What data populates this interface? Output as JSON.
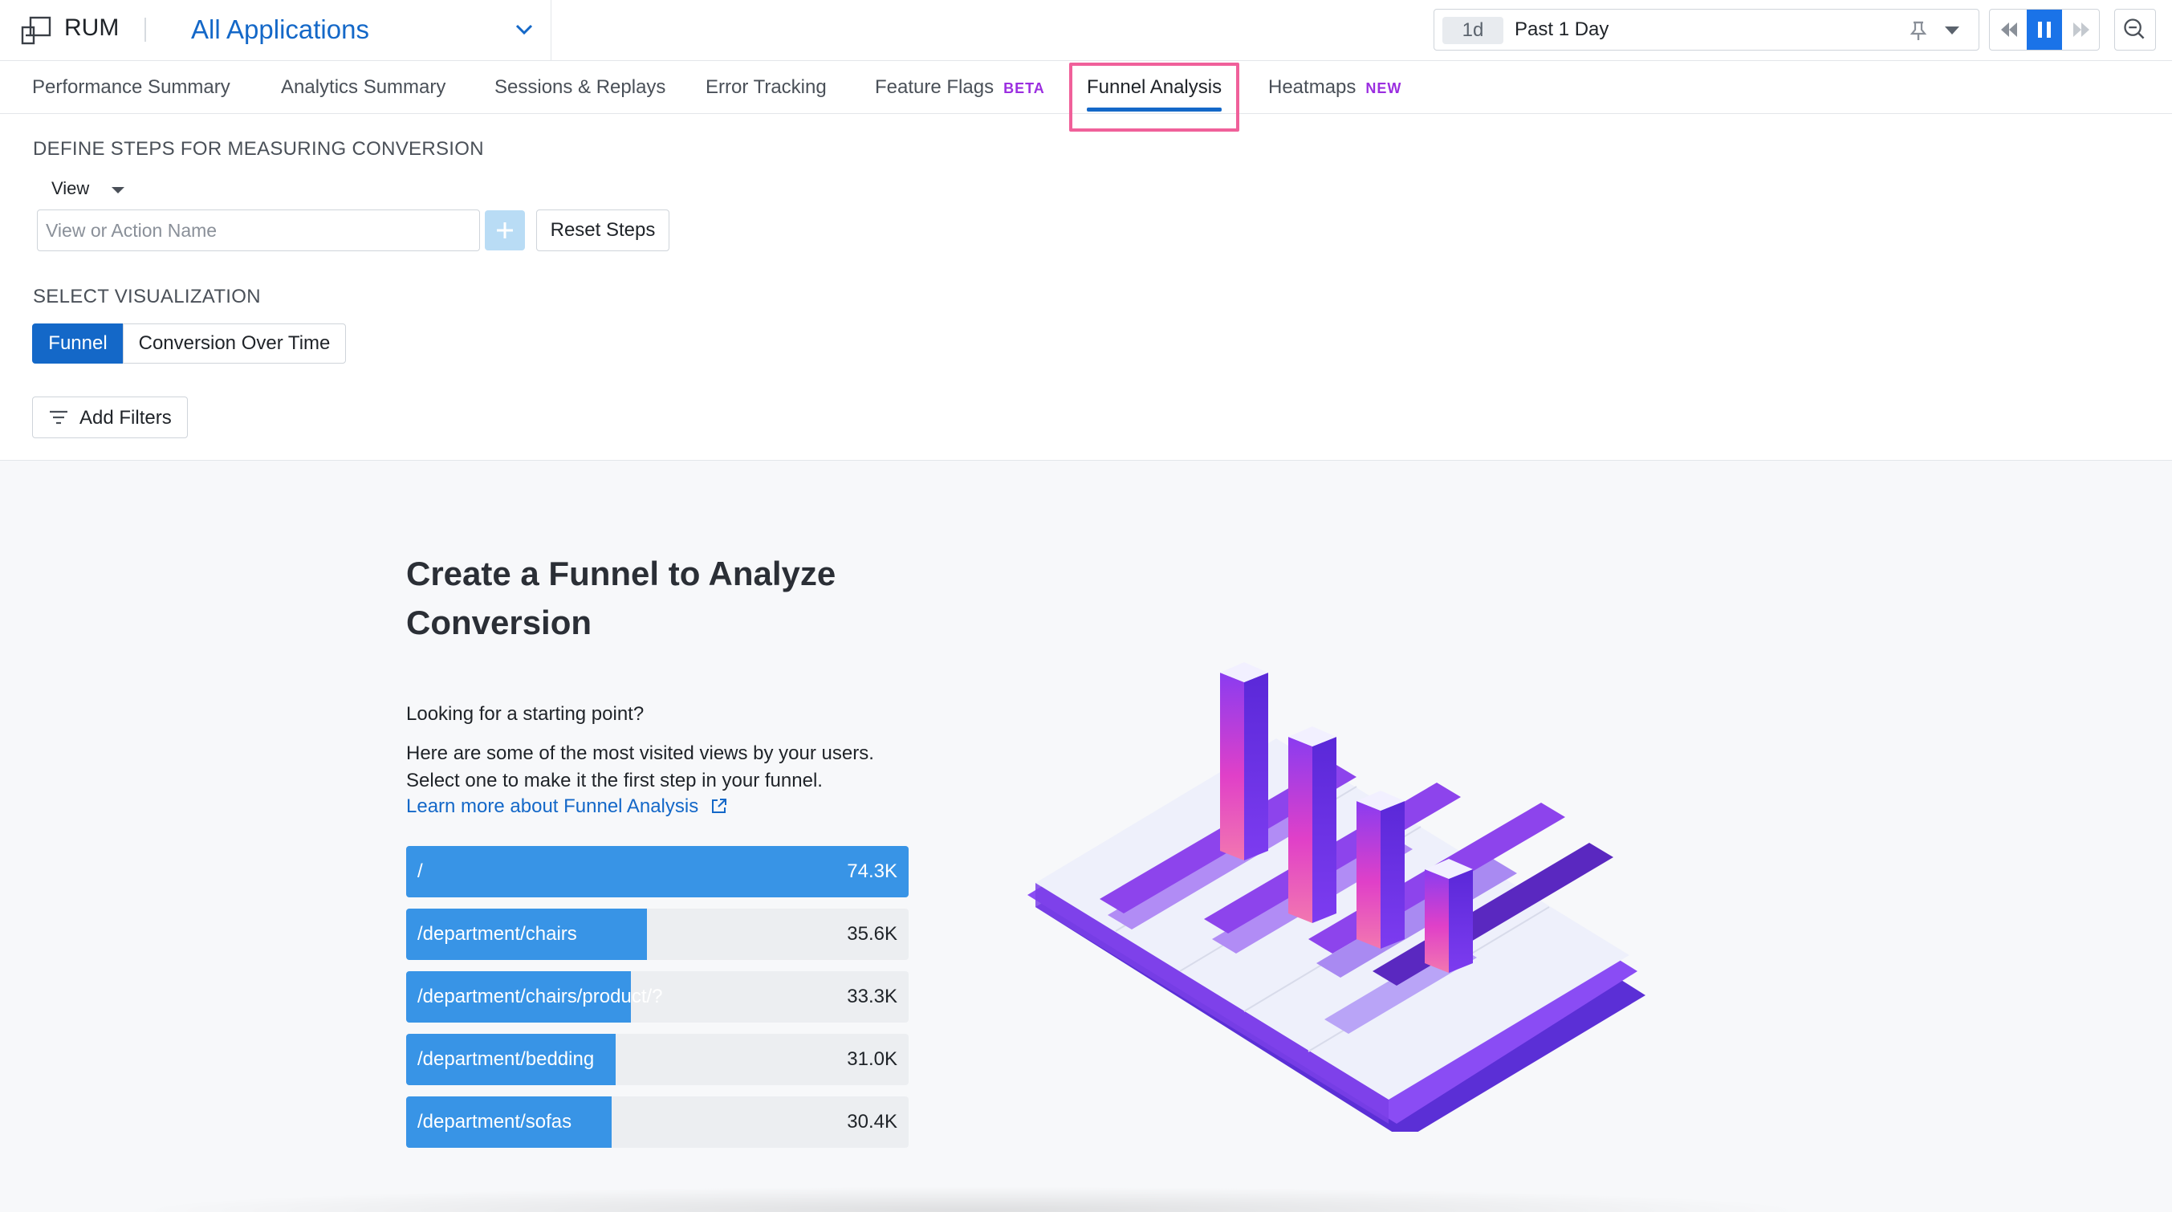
{
  "header": {
    "product": "RUM",
    "app_selector": "All Applications",
    "time_chip": "1d",
    "time_range": "Past 1 Day"
  },
  "tabs": [
    {
      "label": "Performance Summary",
      "badge": ""
    },
    {
      "label": "Analytics Summary",
      "badge": ""
    },
    {
      "label": "Sessions & Replays",
      "badge": ""
    },
    {
      "label": "Error Tracking",
      "badge": ""
    },
    {
      "label": "Feature Flags",
      "badge": "BETA"
    },
    {
      "label": "Funnel Analysis",
      "badge": "",
      "active": true
    },
    {
      "label": "Heatmaps",
      "badge": "NEW"
    }
  ],
  "steps": {
    "section_label": "DEFINE STEPS FOR MEASURING CONVERSION",
    "type_select": "View",
    "input_placeholder": "View or Action Name",
    "input_value": "",
    "reset_label": "Reset Steps"
  },
  "visualization": {
    "section_label": "SELECT VISUALIZATION",
    "options": [
      "Funnel",
      "Conversion Over Time"
    ],
    "selected": "Funnel"
  },
  "filters": {
    "label": "Add Filters"
  },
  "empty_state": {
    "title": "Create a Funnel to Analyze Conversion",
    "prompt": "Looking for a starting point?",
    "description_line1": "Here are some of the most visited views by your users.",
    "description_line2": "Select one to make it the first step in your funnel.",
    "link": "Learn more about Funnel Analysis"
  },
  "top_views": [
    {
      "name": "/",
      "count": "74.3K",
      "share": 1.0
    },
    {
      "name": "/department/chairs",
      "count": "35.6K",
      "share": 0.479
    },
    {
      "name": "/department/chairs/product/?",
      "count": "33.3K",
      "share": 0.448
    },
    {
      "name": "/department/bedding",
      "count": "31.0K",
      "share": 0.417
    },
    {
      "name": "/department/sofas",
      "count": "30.4K",
      "share": 0.409
    }
  ],
  "colors": {
    "accent_blue": "#1468c8",
    "bar_blue": "#3894e6",
    "badge_purple": "#9b2ee0",
    "highlight_pink": "#f0609a"
  }
}
